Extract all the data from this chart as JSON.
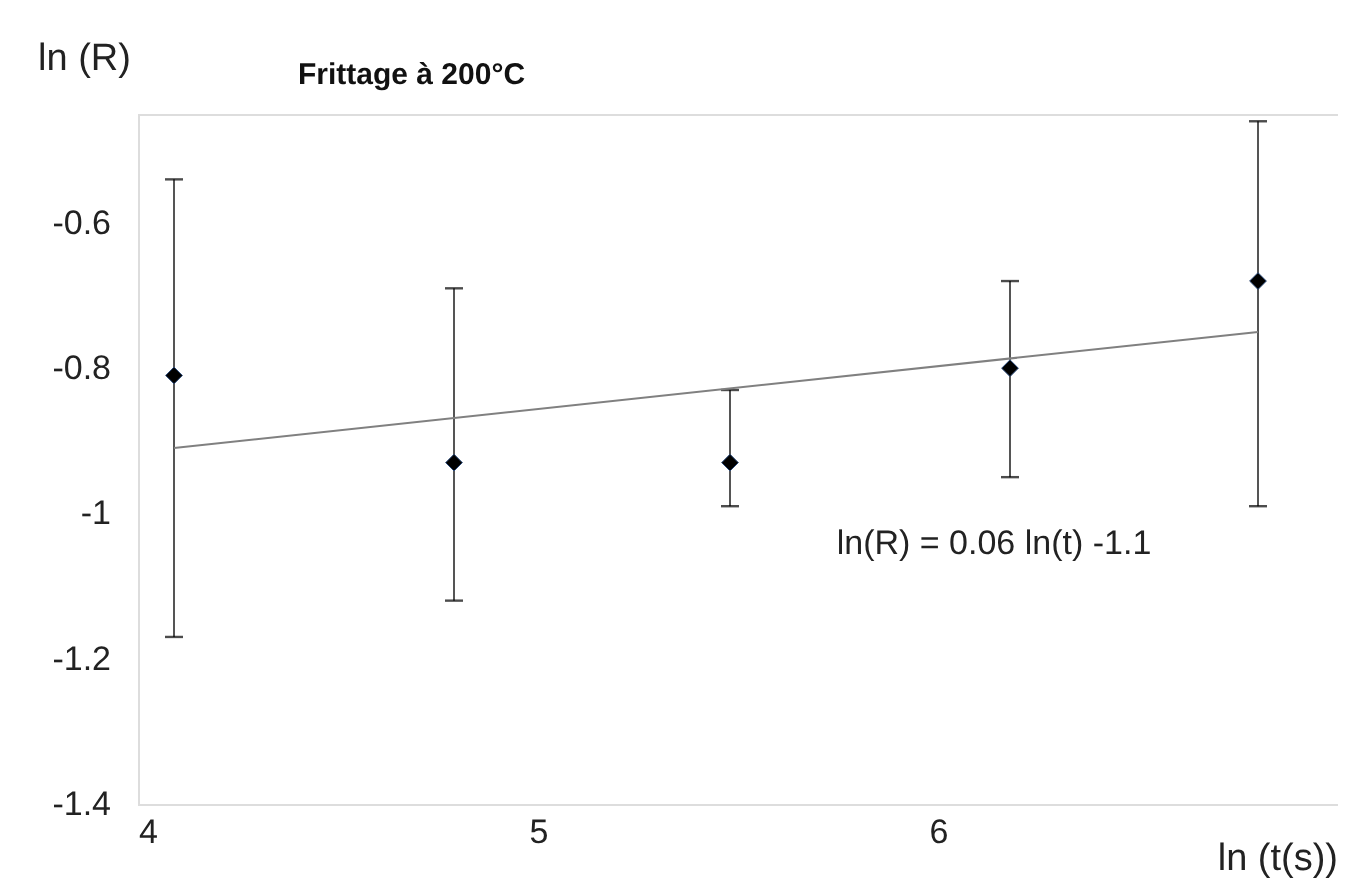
{
  "chart_data": {
    "type": "scatter",
    "title": "Frittage à 200°C",
    "xlabel": "ln (t(s))",
    "ylabel": "ln (R)",
    "xlim": [
      4,
      7
    ],
    "ylim": [
      -1.4,
      -0.45
    ],
    "xticks": [
      4,
      5,
      6
    ],
    "yticks": [
      -1.4,
      -1.2,
      -1,
      -0.8,
      -0.6
    ],
    "grid": false,
    "legend": false,
    "series": [
      {
        "marker": "diamond",
        "color": "#000000",
        "x": [
          4.09,
          4.79,
          5.48,
          6.18,
          6.8
        ],
        "values": [
          -0.81,
          -0.93,
          -0.93,
          -0.8,
          -0.68
        ],
        "errors": [
          [
            -1.17,
            -0.54
          ],
          [
            -1.12,
            -0.69
          ],
          [
            -0.99,
            -0.83
          ],
          [
            -0.95,
            -0.68
          ],
          [
            -0.99,
            -0.46
          ]
        ]
      },
      {
        "type": "line",
        "color": "#808080",
        "x": [
          4.09,
          6.8
        ],
        "values": [
          -0.91,
          -0.75
        ]
      }
    ],
    "annotations": [
      "ln(R) = 0.06 ln(t) -1.1"
    ]
  }
}
